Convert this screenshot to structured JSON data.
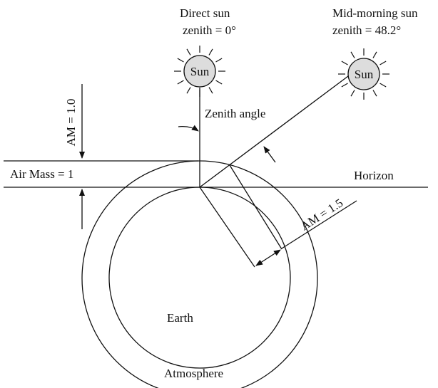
{
  "labels": {
    "direct_sun": "Direct sun",
    "direct_zenith": "zenith = 0°",
    "midmorning_sun": "Mid-morning sun",
    "midmorning_zenith": "zenith = 48.2°",
    "sun_1": "Sun",
    "sun_2": "Sun",
    "am_10": "AM = 1.0",
    "zenith_angle": "Zenith angle",
    "air_mass": "Air Mass = 1",
    "horizon": "Horizon",
    "am_15": "AM = 1.5",
    "earth": "Earth",
    "atmosphere": "Atmosphere"
  }
}
